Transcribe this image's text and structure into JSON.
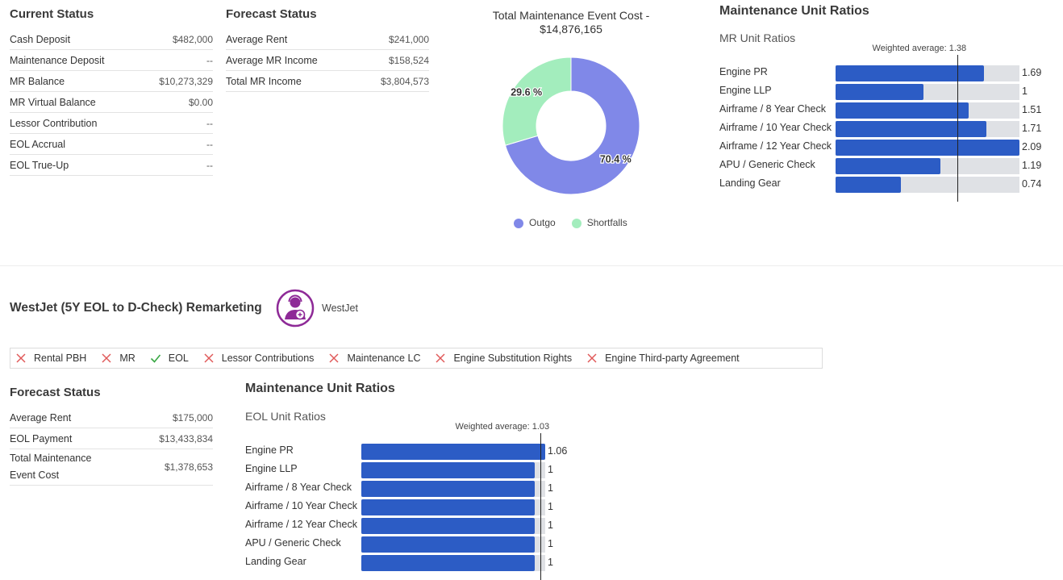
{
  "current_status": {
    "title": "Current Status",
    "rows": [
      {
        "label": "Cash Deposit",
        "value": "$482,000"
      },
      {
        "label": "Maintenance Deposit",
        "value": "--"
      },
      {
        "label": "MR Balance",
        "value": "$10,273,329"
      },
      {
        "label": "MR Virtual Balance",
        "value": "$0.00"
      },
      {
        "label": "Lessor Contribution",
        "value": "--"
      },
      {
        "label": "EOL Accrual",
        "value": "--"
      },
      {
        "label": "EOL True-Up",
        "value": "--"
      }
    ]
  },
  "forecast_status_top": {
    "title": "Forecast Status",
    "rows": [
      {
        "label": "Average Rent",
        "value": "$241,000"
      },
      {
        "label": "Average MR Income",
        "value": "$158,524"
      },
      {
        "label": "Total MR Income",
        "value": "$3,804,573"
      }
    ]
  },
  "donut": {
    "title_line1": "Total Maintenance Event Cost -",
    "title_line2": "$14,876,165",
    "chart_data": {
      "type": "pie",
      "categories": [
        "Outgo",
        "Shortfalls"
      ],
      "values": [
        70.4,
        29.6
      ],
      "labels": [
        "70.4 %",
        "29.6 %"
      ],
      "colors": [
        "#8088e8",
        "#a3edbd"
      ]
    },
    "legend": [
      {
        "label": "Outgo",
        "color": "#8088e8"
      },
      {
        "label": "Shortfalls",
        "color": "#a3edbd"
      }
    ]
  },
  "mur_top": {
    "title": "Maintenance Unit Ratios",
    "subtitle": "MR Unit Ratios",
    "weighted_label": "Weighted average: 1.38",
    "weighted_value": 1.38,
    "max": 2.09,
    "rows": [
      {
        "label": "Engine PR",
        "value": "1.69",
        "num": 1.69
      },
      {
        "label": "Engine LLP",
        "value": "1",
        "num": 1.0
      },
      {
        "label": "Airframe / 8 Year Check",
        "value": "1.51",
        "num": 1.51
      },
      {
        "label": "Airframe / 10 Year Check",
        "value": "1.71",
        "num": 1.71
      },
      {
        "label": "Airframe / 12 Year Check",
        "value": "2.09",
        "num": 2.09
      },
      {
        "label": "APU / Generic Check",
        "value": "1.19",
        "num": 1.19
      },
      {
        "label": "Landing Gear",
        "value": "0.74",
        "num": 0.74
      }
    ]
  },
  "remarketing": {
    "title": "WestJet (5Y EOL to D-Check) Remarketing",
    "airline": "WestJet",
    "logo_color": "#8e2a97",
    "flags": [
      {
        "label": "Rental PBH",
        "on": false
      },
      {
        "label": "MR",
        "on": false
      },
      {
        "label": "EOL",
        "on": true
      },
      {
        "label": "Lessor Contributions",
        "on": false
      },
      {
        "label": "Maintenance LC",
        "on": false
      },
      {
        "label": "Engine Substitution Rights",
        "on": false
      },
      {
        "label": "Engine Third-party Agreement",
        "on": false
      }
    ]
  },
  "forecast_status_bottom": {
    "title": "Forecast Status",
    "rows": [
      {
        "label": "Average Rent",
        "value": "$175,000"
      },
      {
        "label": "EOL Payment",
        "value": "$13,433,834"
      },
      {
        "label": "Total Maintenance Event Cost",
        "label_line1": "Total Maintenance",
        "label_line2": "Event Cost",
        "value": "$1,378,653"
      }
    ]
  },
  "mur_bottom": {
    "title": "Maintenance Unit Ratios",
    "subtitle": "EOL Unit Ratios",
    "weighted_label": "Weighted average: 1.03",
    "weighted_value": 1.03,
    "max": 1.06,
    "rows": [
      {
        "label": "Engine PR",
        "value": "1.06",
        "num": 1.06
      },
      {
        "label": "Engine LLP",
        "value": "1",
        "num": 1.0
      },
      {
        "label": "Airframe / 8 Year Check",
        "value": "1",
        "num": 1.0
      },
      {
        "label": "Airframe / 10 Year Check",
        "value": "1",
        "num": 1.0
      },
      {
        "label": "Airframe / 12 Year Check",
        "value": "1",
        "num": 1.0
      },
      {
        "label": "APU / Generic Check",
        "value": "1",
        "num": 1.0
      },
      {
        "label": "Landing Gear",
        "value": "1",
        "num": 1.0
      }
    ]
  },
  "colors": {
    "bar": "#2c5cc5",
    "track": "#dfe1e5",
    "cross": "#e05a5a",
    "check": "#3aa845"
  }
}
